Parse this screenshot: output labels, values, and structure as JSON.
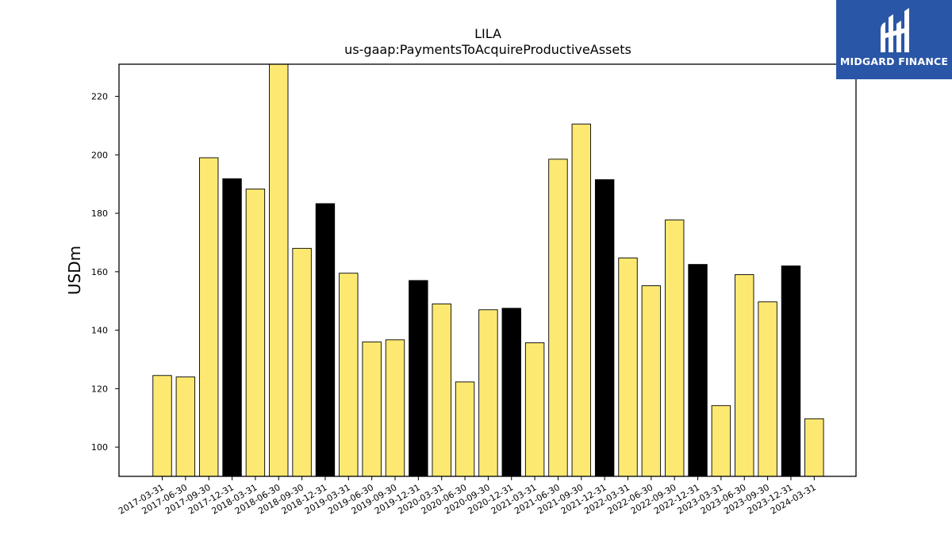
{
  "chart_data": {
    "type": "bar",
    "title": "LILA",
    "subtitle": "us-gaap:PaymentsToAcquireProductiveAssets",
    "ylabel": "USDm",
    "xlabel": "",
    "ylim": [
      90,
      231
    ],
    "yticks": [
      100,
      120,
      140,
      160,
      180,
      200,
      220
    ],
    "grid": false,
    "categories": [
      "2017-03-31",
      "2017-06-30",
      "2017-09-30",
      "2017-12-31",
      "2018-03-31",
      "2018-06-30",
      "2018-09-30",
      "2018-12-31",
      "2019-03-31",
      "2019-06-30",
      "2019-09-30",
      "2019-12-31",
      "2020-03-31",
      "2020-06-30",
      "2020-09-30",
      "2020-12-31",
      "2021-03-31",
      "2021-06-30",
      "2021-09-30",
      "2021-12-31",
      "2022-03-31",
      "2022-06-30",
      "2022-09-30",
      "2022-12-31",
      "2023-03-31",
      "2023-06-30",
      "2023-09-30",
      "2023-12-31",
      "2024-03-31"
    ],
    "values": [
      124.5,
      124.0,
      199.0,
      191.8,
      188.3,
      231.5,
      168.0,
      183.3,
      159.5,
      136.0,
      136.7,
      157.0,
      149.0,
      122.3,
      147.0,
      147.5,
      135.7,
      198.5,
      210.5,
      191.5,
      164.7,
      155.2,
      177.7,
      162.5,
      114.2,
      159.0,
      149.7,
      162.0,
      109.7
    ],
    "colors": {
      "quarter": "#fde971",
      "year_end": "#000000",
      "edge": "#000000"
    }
  },
  "logo": {
    "text": "MIDGARD FINANCE",
    "bg": "#2a56a8"
  }
}
